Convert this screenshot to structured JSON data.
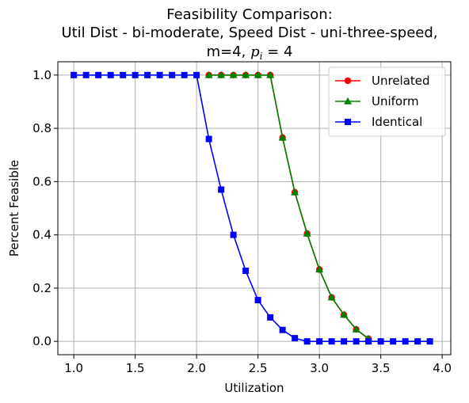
{
  "chart_data": {
    "type": "line",
    "title_lines": [
      "Feasibility Comparison:",
      "Util Dist - bi-moderate, Speed Dist - uni-three-speed,"
    ],
    "title_line3_prefix": "m=4, ",
    "title_line3_var": "p",
    "title_line3_sub": "i",
    "title_line3_suffix": " = 4",
    "xlabel": "Utilization",
    "ylabel": "Percent Feasible",
    "xlim": [
      0.87,
      4.07
    ],
    "ylim": [
      -0.05,
      1.05
    ],
    "xticks": [
      1.0,
      1.5,
      2.0,
      2.5,
      3.0,
      3.5,
      4.0
    ],
    "xtick_labels": [
      "1.0",
      "1.5",
      "2.0",
      "2.5",
      "3.0",
      "3.5",
      "4.0"
    ],
    "yticks": [
      0.0,
      0.2,
      0.4,
      0.6,
      0.8,
      1.0
    ],
    "ytick_labels": [
      "0.0",
      "0.2",
      "0.4",
      "0.6",
      "0.8",
      "1.0"
    ],
    "grid": true,
    "legend_position": "top-right",
    "x": [
      1.0,
      1.1,
      1.2,
      1.3,
      1.4,
      1.5,
      1.6,
      1.7,
      1.8,
      1.9,
      2.0,
      2.1,
      2.2,
      2.3,
      2.4,
      2.5,
      2.6,
      2.7,
      2.8,
      2.9,
      3.0,
      3.1,
      3.2,
      3.3,
      3.4,
      3.5,
      3.6,
      3.7,
      3.8,
      3.9
    ],
    "series": [
      {
        "name": "Unrelated",
        "color": "#ff0000",
        "marker": "circle",
        "x": [
          2.1,
          2.2,
          2.3,
          2.4,
          2.5,
          2.6,
          2.7,
          2.8,
          2.9,
          3.0,
          3.1,
          3.2,
          3.3,
          3.4
        ],
        "values": [
          1.0,
          1.0,
          1.0,
          1.0,
          1.0,
          1.0,
          0.765,
          0.56,
          0.405,
          0.27,
          0.165,
          0.1,
          0.045,
          0.01
        ]
      },
      {
        "name": "Uniform",
        "color": "#008000",
        "marker": "triangle",
        "x": [
          2.1,
          2.2,
          2.3,
          2.4,
          2.5,
          2.6,
          2.7,
          2.8,
          2.9,
          3.0,
          3.1,
          3.2,
          3.3,
          3.4
        ],
        "values": [
          1.0,
          1.0,
          1.0,
          1.0,
          1.0,
          1.0,
          0.765,
          0.56,
          0.405,
          0.27,
          0.165,
          0.1,
          0.045,
          0.01
        ]
      },
      {
        "name": "Identical",
        "color": "#0000ff",
        "marker": "square",
        "x": [
          1.0,
          1.1,
          1.2,
          1.3,
          1.4,
          1.5,
          1.6,
          1.7,
          1.8,
          1.9,
          2.0,
          2.1,
          2.2,
          2.3,
          2.4,
          2.5,
          2.6,
          2.7,
          2.8,
          2.9,
          3.0,
          3.1,
          3.2,
          3.3,
          3.4,
          3.5,
          3.6,
          3.7,
          3.8,
          3.9
        ],
        "values": [
          1.0,
          1.0,
          1.0,
          1.0,
          1.0,
          1.0,
          1.0,
          1.0,
          1.0,
          1.0,
          1.0,
          0.76,
          0.57,
          0.4,
          0.265,
          0.155,
          0.09,
          0.043,
          0.012,
          0.0,
          0.0,
          0.0,
          0.0,
          0.0,
          0.0,
          0.0,
          0.0,
          0.0,
          0.0,
          0.0
        ]
      }
    ]
  }
}
